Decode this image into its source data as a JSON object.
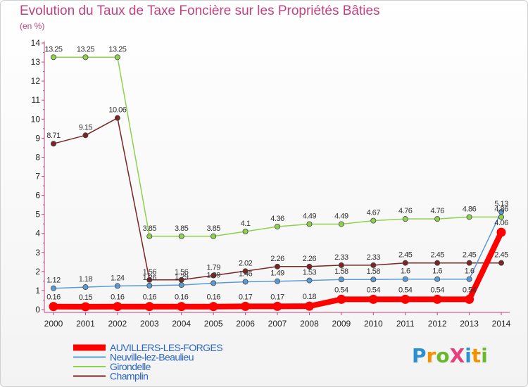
{
  "title": "Evolution du Taux de Taxe Foncière sur les Propriétés Bâties",
  "subtitle": "(en %)",
  "brand": {
    "text": "ProXiti",
    "letters": [
      {
        "ch": "P",
        "color": "#2c8fd0"
      },
      {
        "ch": "r",
        "color": "#f29200"
      },
      {
        "ch": "o",
        "color": "#69b82e"
      },
      {
        "ch": "X",
        "color": "#e83e7c"
      },
      {
        "ch": "i",
        "color": "#2c8fd0"
      },
      {
        "ch": "t",
        "color": "#f29200"
      },
      {
        "ch": "i",
        "color": "#69b82e"
      }
    ]
  },
  "chart_data": {
    "type": "line",
    "title": "Evolution du Taux de Taxe Foncière sur les Propriétés Bâties",
    "ylabel": "(en %)",
    "xlabel": "",
    "ylim": [
      0,
      14
    ],
    "yticks": [
      0,
      1,
      2,
      3,
      4,
      5,
      6,
      7,
      8,
      9,
      10,
      11,
      12,
      13,
      14
    ],
    "x": [
      "2000",
      "2001",
      "2002",
      "2003",
      "2004",
      "2005",
      "2006",
      "2007",
      "2008",
      "2009",
      "2010",
      "2011",
      "2012",
      "2013",
      "2014"
    ],
    "series": [
      {
        "name": "AUVILLERS-LES-FORGES",
        "color": "#ff0000",
        "values": [
          0.16,
          0.15,
          0.16,
          0.16,
          0.16,
          0.16,
          0.17,
          0.17,
          0.18,
          0.54,
          0.54,
          0.54,
          0.54,
          0.54,
          4.06
        ],
        "labels": [
          "0.16",
          "0.15",
          "0.16",
          "0.16",
          "0.16",
          "0.16",
          "0.17",
          "0.17",
          "0.18",
          "0.54",
          "0.54",
          "0.54",
          "0.54",
          "0.54",
          "4.06"
        ]
      },
      {
        "name": "Neuville-lez-Beaulieu",
        "color": "#5b9bd5",
        "values": [
          1.12,
          1.18,
          1.24,
          1.26,
          1.29,
          1.39,
          1.46,
          1.49,
          1.53,
          1.58,
          1.58,
          1.6,
          1.6,
          1.6,
          5.13
        ],
        "labels": [
          "1.12",
          "1.18",
          "1.24",
          "1.26",
          "1.29",
          "1.39",
          "1.46",
          "1.49",
          "1.53",
          "1.58",
          "1.58",
          "1.6",
          "1.6",
          "1.6",
          "5.13"
        ]
      },
      {
        "name": "Girondelle",
        "color": "#8fd14f",
        "values": [
          13.25,
          13.25,
          13.25,
          3.85,
          3.85,
          3.85,
          4.1,
          4.36,
          4.49,
          4.49,
          4.67,
          4.76,
          4.76,
          4.86,
          4.86
        ],
        "labels": [
          "13.25",
          "13.25",
          "13.25",
          "3.85",
          "3.85",
          "3.85",
          "4.1",
          "4.36",
          "4.49",
          "4.49",
          "4.67",
          "4.76",
          "4.76",
          "4.86",
          "4.86"
        ]
      },
      {
        "name": "Champlin",
        "color": "#7b2525",
        "values": [
          8.71,
          9.15,
          10.06,
          1.56,
          1.56,
          1.79,
          2.02,
          2.26,
          2.26,
          2.33,
          2.33,
          2.45,
          2.45,
          2.45,
          2.45
        ],
        "labels": [
          "8.71",
          "9.15",
          "10.06",
          "1.56",
          "1.56",
          "1.79",
          "2.02",
          "2.26",
          "2.26",
          "2.33",
          "2.33",
          "2.45",
          "2.45",
          "2.45",
          "2.45"
        ]
      }
    ],
    "legend": "bottom-left",
    "grid": false
  }
}
